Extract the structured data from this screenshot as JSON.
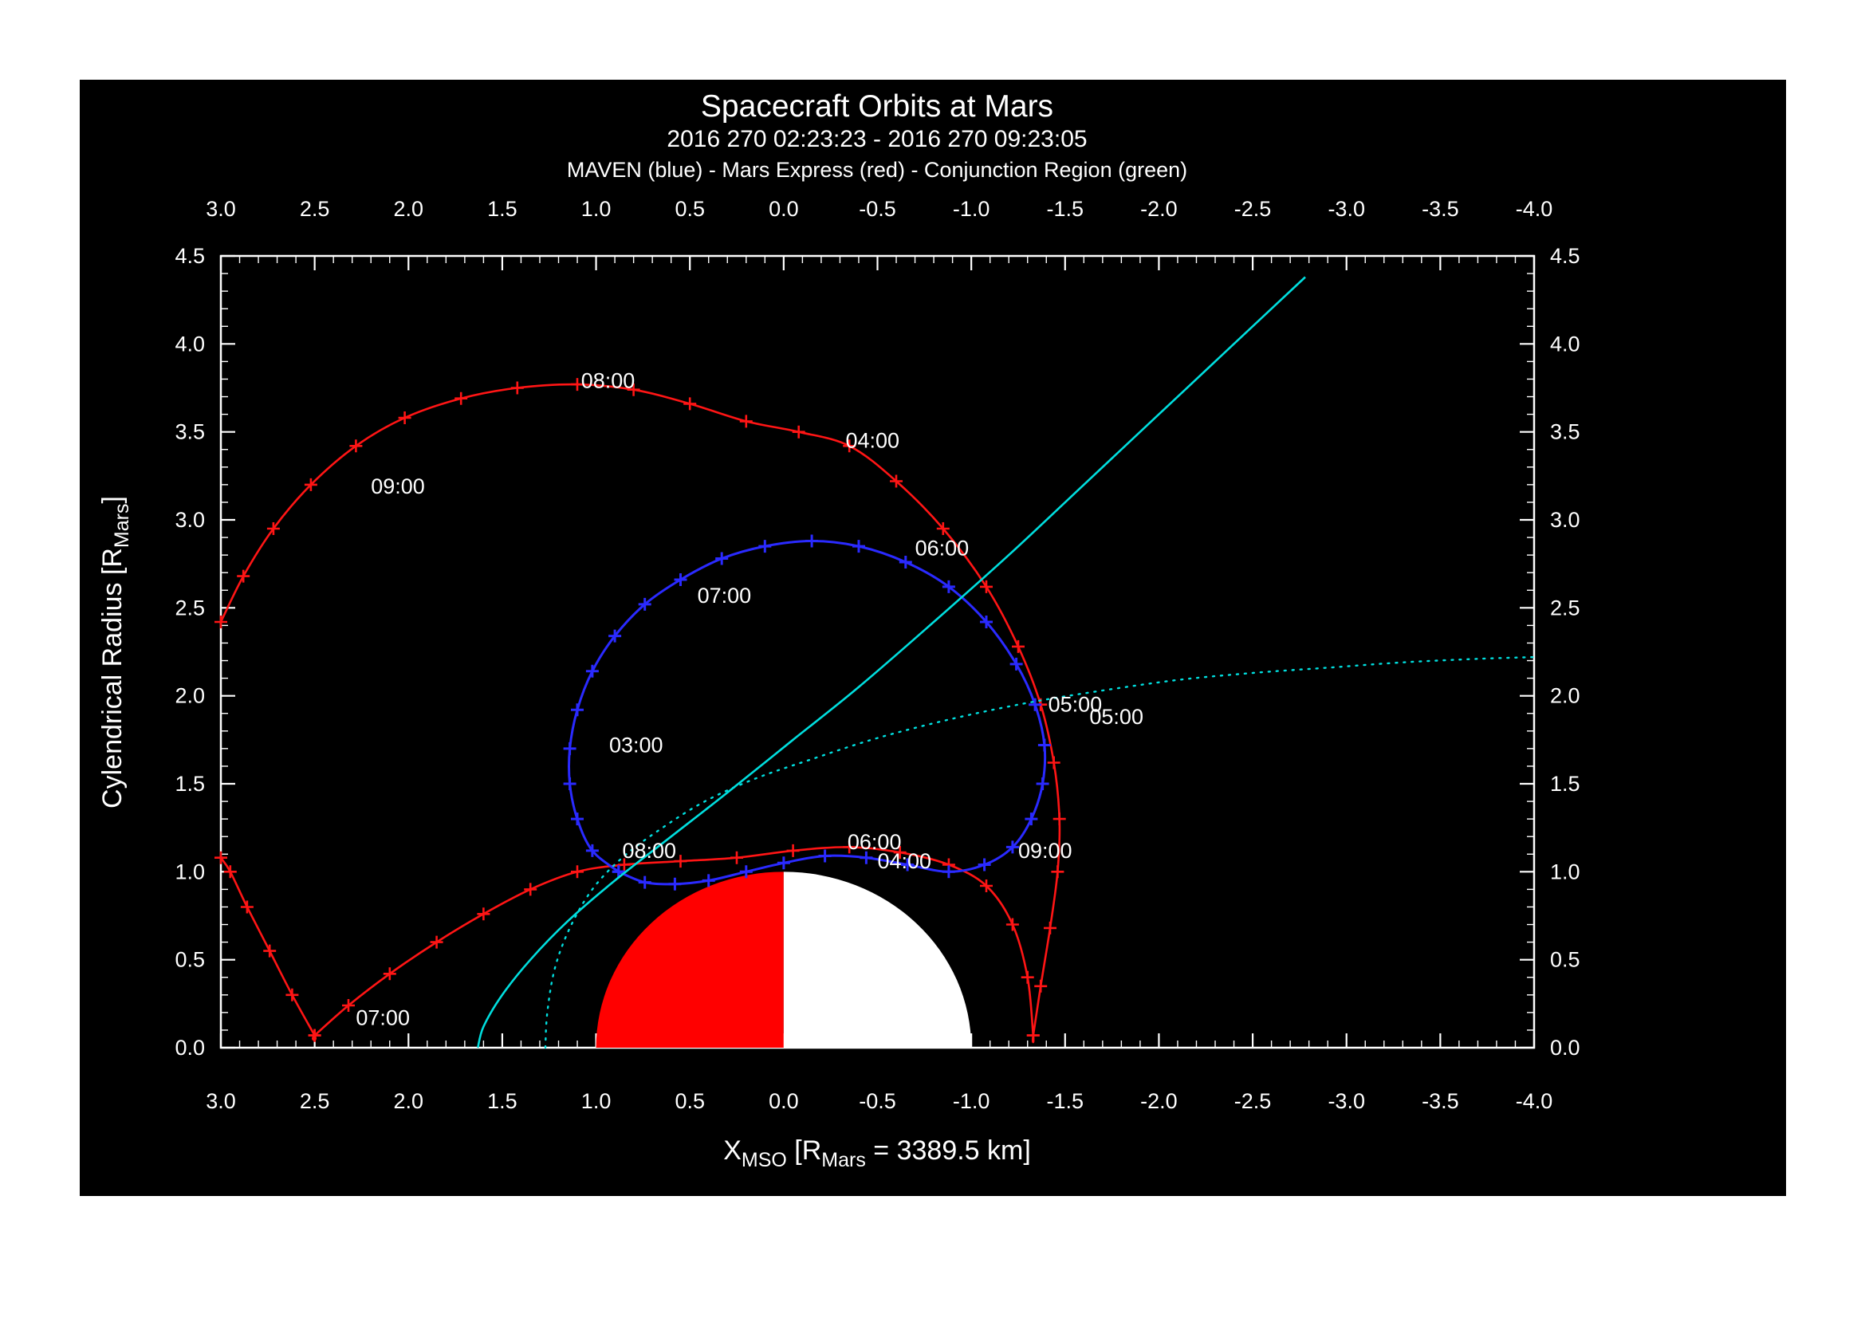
{
  "header": {
    "title": "Spacecraft Orbits at Mars",
    "subtitle": "2016 270 02:23:23 - 2016 270 09:23:05",
    "legend": "MAVEN (blue) - Mars Express (red) - Conjunction Region (green)"
  },
  "colors": {
    "background": "#000000",
    "axis": "#ffffff",
    "maven_blue": "#2a2aff",
    "mars_express_red": "#ff1515",
    "boundary_cyan": "#00dede",
    "conjunction_green": "#00cc00",
    "mars_day": "#ff0000",
    "mars_night": "#ffffff"
  },
  "chart_data": {
    "type": "line",
    "title": "Spacecraft Orbits at Mars",
    "subtitle": "2016 270 02:23:23 - 2016 270 09:23:05",
    "legend_line": "MAVEN (blue) - Mars Express (red) - Conjunction Region (green)",
    "xlabel_parts": [
      {
        "t": "X"
      },
      {
        "t": "MSO",
        "sub": true
      },
      {
        "t": " [R"
      },
      {
        "t": "Mars",
        "sub": true
      },
      {
        "t": " = 3389.5 km]"
      }
    ],
    "ylabel_parts": [
      {
        "t": "Cylendrical Radius [R"
      },
      {
        "t": "Mars",
        "sub": true
      },
      {
        "t": "]"
      }
    ],
    "xlim": [
      3.0,
      -4.0
    ],
    "ylim": [
      0.0,
      4.5
    ],
    "grid": false,
    "x_tick_values": [
      3.0,
      2.5,
      2.0,
      1.5,
      1.0,
      0.5,
      0.0,
      -0.5,
      -1.0,
      -1.5,
      -2.0,
      -2.5,
      -3.0,
      -3.5,
      -4.0
    ],
    "x_tick_labels": [
      "3.0",
      "2.5",
      "2.0",
      "1.5",
      "1.0",
      "0.5",
      "0.0",
      "-0.5",
      "-1.0",
      "-1.5",
      "-2.0",
      "-2.5",
      "-3.0",
      "-3.5",
      "-4.0"
    ],
    "y_tick_values": [
      0.0,
      0.5,
      1.0,
      1.5,
      2.0,
      2.5,
      3.0,
      3.5,
      4.0,
      4.5
    ],
    "y_tick_labels": [
      "0.0",
      "0.5",
      "1.0",
      "1.5",
      "2.0",
      "2.5",
      "3.0",
      "3.5",
      "4.0",
      "4.5"
    ],
    "mars": {
      "center_x": 0,
      "center_y": 0,
      "radius": 1.0,
      "dayside_color": "#ff0000",
      "nightside_color": "#ffffff"
    },
    "series": [
      {
        "id": "mars-express-orbit",
        "name": "Mars Express",
        "color": "#ff1515",
        "style": "solid",
        "marker": "plus",
        "width": 2.6,
        "points": [
          [
            3.0,
            2.42
          ],
          [
            2.88,
            2.68
          ],
          [
            2.72,
            2.95
          ],
          [
            2.52,
            3.2
          ],
          [
            2.28,
            3.42
          ],
          [
            2.02,
            3.58
          ],
          [
            1.72,
            3.69
          ],
          [
            1.42,
            3.75
          ],
          [
            1.1,
            3.77
          ],
          [
            0.8,
            3.74
          ],
          [
            0.5,
            3.66
          ],
          [
            0.2,
            3.56
          ],
          [
            -0.08,
            3.5
          ],
          [
            -0.35,
            3.42
          ],
          [
            -0.6,
            3.22
          ],
          [
            -0.85,
            2.95
          ],
          [
            -1.08,
            2.62
          ],
          [
            -1.25,
            2.28
          ],
          [
            -1.37,
            1.95
          ],
          [
            -1.44,
            1.62
          ],
          [
            -1.47,
            1.3
          ],
          [
            -1.46,
            1.0
          ],
          [
            -1.42,
            0.68
          ],
          [
            -1.37,
            0.35
          ],
          [
            -1.33,
            0.07
          ],
          [
            -1.33,
            0.07
          ],
          [
            -1.3,
            0.4
          ],
          [
            -1.22,
            0.7
          ],
          [
            -1.08,
            0.92
          ],
          [
            -0.88,
            1.04
          ],
          [
            -0.62,
            1.11
          ],
          [
            -0.35,
            1.14
          ],
          [
            -0.05,
            1.12
          ],
          [
            0.25,
            1.08
          ],
          [
            0.55,
            1.06
          ],
          [
            0.85,
            1.04
          ],
          [
            1.1,
            1.0
          ],
          [
            1.35,
            0.9
          ],
          [
            1.6,
            0.76
          ],
          [
            1.85,
            0.6
          ],
          [
            2.1,
            0.42
          ],
          [
            2.32,
            0.24
          ],
          [
            2.5,
            0.07
          ],
          [
            2.5,
            0.07
          ],
          [
            2.62,
            0.3
          ],
          [
            2.74,
            0.55
          ],
          [
            2.86,
            0.8
          ],
          [
            2.95,
            1.0
          ],
          [
            3.0,
            1.08
          ]
        ]
      },
      {
        "id": "maven-orbit",
        "name": "MAVEN",
        "color": "#2a2aff",
        "style": "solid",
        "marker": "plus",
        "width": 3.0,
        "points": [
          [
            0.88,
            1.0
          ],
          [
            1.02,
            1.12
          ],
          [
            1.1,
            1.3
          ],
          [
            1.14,
            1.5
          ],
          [
            1.14,
            1.7
          ],
          [
            1.1,
            1.92
          ],
          [
            1.02,
            2.14
          ],
          [
            0.9,
            2.34
          ],
          [
            0.74,
            2.52
          ],
          [
            0.55,
            2.66
          ],
          [
            0.33,
            2.78
          ],
          [
            0.1,
            2.85
          ],
          [
            -0.15,
            2.88
          ],
          [
            -0.4,
            2.85
          ],
          [
            -0.65,
            2.76
          ],
          [
            -0.88,
            2.62
          ],
          [
            -1.08,
            2.42
          ],
          [
            -1.24,
            2.18
          ],
          [
            -1.34,
            1.95
          ],
          [
            -1.39,
            1.72
          ],
          [
            -1.38,
            1.5
          ],
          [
            -1.32,
            1.3
          ],
          [
            -1.22,
            1.14
          ],
          [
            -1.07,
            1.04
          ],
          [
            -0.88,
            1.0
          ],
          [
            -0.66,
            1.04
          ],
          [
            -0.44,
            1.08
          ],
          [
            -0.22,
            1.09
          ],
          [
            0.0,
            1.05
          ],
          [
            0.2,
            1.0
          ],
          [
            0.4,
            0.95
          ],
          [
            0.58,
            0.93
          ],
          [
            0.74,
            0.94
          ],
          [
            0.88,
            1.0
          ]
        ]
      },
      {
        "id": "boundary-solid",
        "name": "boundary-solid",
        "color": "#00dede",
        "style": "solid",
        "marker": "none",
        "width": 2.6,
        "points": [
          [
            -2.78,
            4.38
          ],
          [
            -2.4,
            4.0
          ],
          [
            -2.0,
            3.6
          ],
          [
            -1.6,
            3.2
          ],
          [
            -1.2,
            2.8
          ],
          [
            -0.8,
            2.42
          ],
          [
            -0.4,
            2.05
          ],
          [
            -0.05,
            1.75
          ],
          [
            0.3,
            1.45
          ],
          [
            0.6,
            1.2
          ],
          [
            0.9,
            0.95
          ],
          [
            1.15,
            0.72
          ],
          [
            1.35,
            0.5
          ],
          [
            1.5,
            0.3
          ],
          [
            1.6,
            0.12
          ],
          [
            1.63,
            0.0
          ]
        ]
      },
      {
        "id": "boundary-dotted",
        "name": "boundary-dotted",
        "color": "#00dede",
        "style": "dotted",
        "marker": "none",
        "width": 2.4,
        "points": [
          [
            1.27,
            0.0
          ],
          [
            1.26,
            0.2
          ],
          [
            1.22,
            0.45
          ],
          [
            1.14,
            0.68
          ],
          [
            1.02,
            0.9
          ],
          [
            0.86,
            1.08
          ],
          [
            0.66,
            1.24
          ],
          [
            0.42,
            1.4
          ],
          [
            0.15,
            1.53
          ],
          [
            -0.15,
            1.64
          ],
          [
            -0.5,
            1.76
          ],
          [
            -0.9,
            1.87
          ],
          [
            -1.3,
            1.96
          ],
          [
            -1.7,
            2.03
          ],
          [
            -2.1,
            2.09
          ],
          [
            -2.5,
            2.13
          ],
          [
            -2.9,
            2.16
          ],
          [
            -3.3,
            2.19
          ],
          [
            -3.7,
            2.21
          ],
          [
            -4.0,
            2.22
          ]
        ]
      }
    ],
    "annotations": [
      {
        "text": "08:00",
        "color": "#ff1515",
        "x": 1.08,
        "y": 3.79
      },
      {
        "text": "04:00",
        "color": "#ff1515",
        "x": -0.33,
        "y": 3.45
      },
      {
        "text": "09:00",
        "color": "#ff1515",
        "x": 2.2,
        "y": 3.19
      },
      {
        "text": "05:00",
        "color": "#ff1515",
        "x": -1.63,
        "y": 1.88
      },
      {
        "text": "06:00",
        "color": "#ff1515",
        "x": -0.34,
        "y": 1.17
      },
      {
        "text": "07:00",
        "color": "#ff1515",
        "x": 2.28,
        "y": 0.17
      },
      {
        "text": "06:00",
        "color": "#2a2aff",
        "x": -0.7,
        "y": 2.84
      },
      {
        "text": "07:00",
        "color": "#2a2aff",
        "x": 0.46,
        "y": 2.57
      },
      {
        "text": "03:00",
        "color": "#2a2aff",
        "x": 0.93,
        "y": 1.72
      },
      {
        "text": "08:00",
        "color": "#2a2aff",
        "x": 0.86,
        "y": 1.12
      },
      {
        "text": "04:00",
        "color": "#2a2aff",
        "x": -0.5,
        "y": 1.06
      },
      {
        "text": "09:00",
        "color": "#2a2aff",
        "x": -1.25,
        "y": 1.12
      },
      {
        "text": "05:00",
        "color": "#2a2aff",
        "x": -1.41,
        "y": 1.95
      }
    ]
  }
}
